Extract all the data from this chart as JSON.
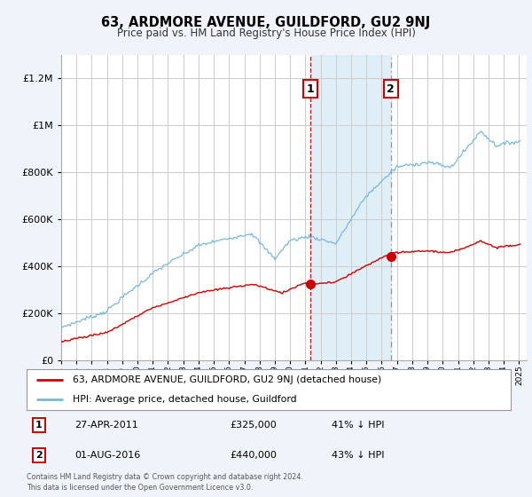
{
  "title": "63, ARDMORE AVENUE, GUILDFORD, GU2 9NJ",
  "subtitle": "Price paid vs. HM Land Registry's House Price Index (HPI)",
  "footer": "Contains HM Land Registry data © Crown copyright and database right 2024.\nThis data is licensed under the Open Government Licence v3.0.",
  "legend_line1": "63, ARDMORE AVENUE, GUILDFORD, GU2 9NJ (detached house)",
  "legend_line2": "HPI: Average price, detached house, Guildford",
  "sale1_date": "27-APR-2011",
  "sale1_price": "£325,000",
  "sale1_hpi": "41% ↓ HPI",
  "sale2_date": "01-AUG-2016",
  "sale2_price": "£440,000",
  "sale2_hpi": "43% ↓ HPI",
  "sale1_year": 2011.32,
  "sale1_value": 325000,
  "sale2_year": 2016.6,
  "sale2_value": 440000,
  "hpi_color": "#7ab8d9",
  "price_color": "#cc0000",
  "background_color": "#f0f4fa",
  "plot_bg_color": "#ffffff",
  "shade_color": "#d8eaf5",
  "ylim_max": 1300000,
  "xlim_start": 1995,
  "xlim_end": 2025.5,
  "yticks": [
    0,
    200000,
    400000,
    600000,
    800000,
    1000000,
    1200000
  ]
}
